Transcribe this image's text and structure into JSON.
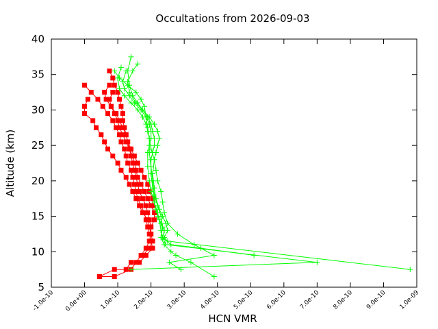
{
  "chart_data": {
    "type": "scatter",
    "title": "Occultations from 2026-09-03",
    "xlabel": "HCN VMR",
    "ylabel": "Altitude (km)",
    "xlim": [
      -1e-10,
      1e-09
    ],
    "ylim": [
      5,
      40
    ],
    "x_ticks": [
      -1e-10,
      0.0,
      1e-10,
      2e-10,
      3e-10,
      4e-10,
      5e-10,
      6e-10,
      7e-10,
      8e-10,
      9e-10,
      1e-09
    ],
    "x_tick_labels": [
      "-1.0e-10",
      "0.0e+00",
      "1.0e-10",
      "2.0e-10",
      "3.0e-10",
      "4.0e-10",
      "5.0e-10",
      "6.0e-10",
      "7.0e-10",
      "8.0e-10",
      "9.0e-10",
      "1.0e-09"
    ],
    "y_ticks": [
      5,
      10,
      15,
      20,
      25,
      30,
      35,
      40
    ],
    "y_tick_labels": [
      "5",
      "10",
      "15",
      "20",
      "25",
      "30",
      "35",
      "40"
    ],
    "grid": false,
    "legend": "none",
    "series": [
      {
        "marker": "square",
        "color": "#ff0000",
        "x": [
          7.5e-11,
          8.5e-11,
          9e-11,
          1e-10,
          1.05e-10,
          1.1e-10,
          1.15e-10,
          1.15e-10,
          1.2e-10,
          1.25e-10,
          1.3e-10,
          1.35e-10,
          1.4e-10,
          1.45e-10,
          1.5e-10,
          1.55e-10,
          1.6e-10,
          1.65e-10,
          1.75e-10,
          1.85e-10,
          1.9e-10,
          1.95e-10,
          2e-10,
          2e-10,
          1.95e-10,
          1.85e-10,
          1.7e-10,
          1.55e-10,
          1.4e-10,
          9e-11,
          4.5e-11
        ],
        "y": [
          35.5,
          34.5,
          33.5,
          32.5,
          31.5,
          30.5,
          29.5,
          28.5,
          27.5,
          26.5,
          25.5,
          24.5,
          23.5,
          22.5,
          21.5,
          20.5,
          19.5,
          18.5,
          17.5,
          16.5,
          15.5,
          14.5,
          13.5,
          12.5,
          11.5,
          10.5,
          9.5,
          8.5,
          7.5,
          6.5,
          6.5
        ]
      },
      {
        "marker": "square",
        "color": "#ff0000",
        "x": [
          0.0,
          2e-11,
          4e-11,
          5.5e-11,
          7e-11,
          8.5e-11,
          9.5e-11,
          1.05e-10,
          1.1e-10,
          1.2e-10,
          1.25e-10,
          1.3e-10,
          1.4e-10,
          1.45e-10,
          1.5e-10,
          1.55e-10,
          1.6e-10,
          1.7e-10,
          1.8e-10,
          1.85e-10,
          1.9e-10,
          1.95e-10,
          2e-10,
          2.05e-10,
          1.85e-10,
          1.65e-10,
          1.4e-10,
          1.25e-10,
          9e-11,
          4.5e-11
        ],
        "y": [
          33.5,
          32.5,
          31.5,
          30.5,
          29.5,
          28.5,
          27.5,
          26.5,
          25.5,
          24.5,
          23.5,
          22.5,
          21.5,
          20.5,
          19.5,
          18.5,
          17.5,
          16.5,
          15.5,
          14.5,
          13.5,
          12.5,
          11.5,
          10.5,
          9.5,
          8.5,
          8.5,
          7.5,
          7.5,
          6.5
        ]
      },
      {
        "marker": "square",
        "color": "#ff0000",
        "x": [
          1e-11,
          0.0,
          0.0,
          2.5e-11,
          3.5e-11,
          5e-11,
          6e-11,
          7e-11,
          8.5e-11,
          1e-10,
          1.1e-10,
          1.25e-10,
          1.35e-10,
          1.45e-10,
          1.55e-10,
          1.65e-10,
          1.75e-10,
          1.9e-10,
          1.95e-10,
          2e-10,
          2.05e-10,
          1.95e-10,
          1.75e-10
        ],
        "y": [
          31.5,
          30.5,
          29.5,
          28.5,
          27.5,
          26.5,
          25.5,
          24.5,
          23.5,
          22.5,
          21.5,
          20.5,
          19.5,
          18.5,
          17.5,
          16.5,
          15.5,
          14.5,
          13.5,
          12.5,
          11.5,
          10.5,
          9.5
        ]
      },
      {
        "marker": "square",
        "color": "#ff0000",
        "x": [
          8.5e-11,
          7.5e-11,
          8e-11,
          9e-11,
          1e-10,
          1.05e-10,
          1.15e-10,
          1.25e-10,
          1.35e-10,
          1.45e-10,
          1.5e-10,
          1.55e-10,
          1.6e-10,
          1.7e-10,
          1.8e-10,
          1.9e-10,
          2e-10,
          2.1e-10,
          2.1e-10,
          2e-10
        ],
        "y": [
          32.5,
          31.5,
          30.5,
          29.5,
          28.5,
          27.5,
          26.5,
          25.5,
          24.5,
          23.5,
          22.5,
          21.5,
          20.5,
          19.5,
          18.5,
          17.5,
          16.5,
          15.5,
          14.5,
          13.5
        ]
      },
      {
        "marker": "square",
        "color": "#ff0000",
        "x": [
          7.5e-11,
          6e-11,
          6.5e-11,
          8e-11,
          9.5e-11,
          1.05e-10,
          1.15e-10,
          1.25e-10,
          1.3e-10,
          1.4e-10,
          1.5e-10,
          1.6e-10,
          1.7e-10,
          1.8e-10,
          1.9e-10,
          1.95e-10,
          2.05e-10,
          2.05e-10
        ],
        "y": [
          33.5,
          32.5,
          31.5,
          30.5,
          29.5,
          28.5,
          27.5,
          26.5,
          25.5,
          24.5,
          23.5,
          22.5,
          21.5,
          20.5,
          19.5,
          18.5,
          17.5,
          16.5
        ]
      },
      {
        "marker": "plus",
        "color": "#00ff00",
        "x": [
          1.4e-10,
          1.3e-10,
          1.35e-10,
          1.45e-10,
          1.6e-10,
          1.75e-10,
          1.9e-10,
          2e-10,
          2.05e-10,
          2.1e-10,
          2.1e-10,
          2.05e-10,
          2e-10,
          2e-10,
          2.05e-10,
          2.1e-10,
          2.15e-10,
          2.2e-10,
          2.3e-10,
          2.4e-10,
          2.35e-10,
          2.45e-10,
          7e-10,
          1.4e-10
        ],
        "y": [
          37.5,
          35.5,
          33.5,
          32.0,
          31.0,
          30.0,
          29.0,
          28.0,
          27.0,
          26.0,
          25.0,
          24.0,
          23.0,
          21.0,
          19.0,
          17.0,
          16.0,
          15.0,
          14.0,
          13.0,
          12.0,
          11.0,
          8.5,
          7.5
        ]
      },
      {
        "marker": "plus",
        "color": "#00ff00",
        "x": [
          1.6e-10,
          1.45e-10,
          1.3e-10,
          1.35e-10,
          1.55e-10,
          1.75e-10,
          1.95e-10,
          2.1e-10,
          2.2e-10,
          2.25e-10,
          2.2e-10,
          2.15e-10,
          2.1e-10,
          2.05e-10,
          2.1e-10,
          2.15e-10,
          2.25e-10,
          2.35e-10,
          2.45e-10,
          2.5e-10,
          2.4e-10,
          2.5e-10,
          9.8e-10
        ],
        "y": [
          36.5,
          35.5,
          34.0,
          32.5,
          31.0,
          30.0,
          29.0,
          28.0,
          27.0,
          26.0,
          25.0,
          24.0,
          23.0,
          21.0,
          19.0,
          17.5,
          16.0,
          15.0,
          14.0,
          13.0,
          12.0,
          11.5,
          7.5
        ]
      },
      {
        "marker": "plus",
        "color": "#00ff00",
        "x": [
          1.25e-10,
          1.15e-10,
          1.2e-10,
          1.35e-10,
          1.5e-10,
          1.7e-10,
          1.85e-10,
          1.95e-10,
          2e-10,
          2e-10,
          1.95e-10,
          1.9e-10,
          1.9e-10,
          1.95e-10,
          2e-10,
          2.1e-10,
          2.2e-10,
          2.25e-10,
          2.3e-10,
          2.35e-10,
          2.6e-10,
          3.5e-10,
          5.1e-10
        ],
        "y": [
          35.5,
          34.0,
          33.0,
          32.0,
          31.0,
          30.0,
          29.0,
          28.0,
          27.0,
          26.0,
          25.0,
          24.0,
          22.0,
          20.0,
          18.5,
          17.0,
          15.5,
          14.5,
          13.0,
          12.0,
          11.0,
          10.5,
          9.5
        ]
      },
      {
        "marker": "plus",
        "color": "#00ff00",
        "x": [
          1.1e-10,
          1e-10,
          1.05e-10,
          1.2e-10,
          1.4e-10,
          1.6e-10,
          1.75e-10,
          1.85e-10,
          1.9e-10,
          1.95e-10,
          1.95e-10,
          2e-10,
          2.05e-10,
          2.1e-10,
          2.2e-10,
          2.3e-10,
          2.35e-10,
          2.3e-10,
          2.4e-10,
          2.6e-10,
          2.75e-10,
          3.2e-10,
          3.9e-10
        ],
        "y": [
          36.0,
          34.5,
          33.0,
          32.0,
          31.0,
          30.0,
          29.0,
          28.0,
          27.0,
          26.0,
          24.0,
          22.0,
          20.0,
          18.0,
          16.5,
          15.0,
          13.5,
          12.0,
          11.0,
          10.0,
          9.5,
          8.5,
          6.5
        ]
      },
      {
        "marker": "plus",
        "color": "#00ff00",
        "x": [
          9e-11,
          1.05e-10,
          1.3e-10,
          1.55e-10,
          1.7e-10,
          1.8e-10,
          1.85e-10,
          1.9e-10,
          1.95e-10,
          2e-10,
          2.1e-10,
          2.15e-10,
          2.2e-10,
          2.3e-10,
          2.35e-10,
          2.4e-10,
          2.5e-10,
          2.8e-10,
          3.3e-10,
          3.9e-10,
          2.55e-10,
          2.9e-10
        ],
        "y": [
          35.5,
          34.5,
          33.5,
          32.5,
          31.5,
          30.5,
          29.0,
          27.5,
          26.0,
          24.5,
          23.0,
          21.5,
          20.0,
          18.5,
          17.0,
          15.5,
          14.0,
          12.5,
          11.0,
          9.5,
          8.5,
          7.5
        ]
      }
    ]
  }
}
